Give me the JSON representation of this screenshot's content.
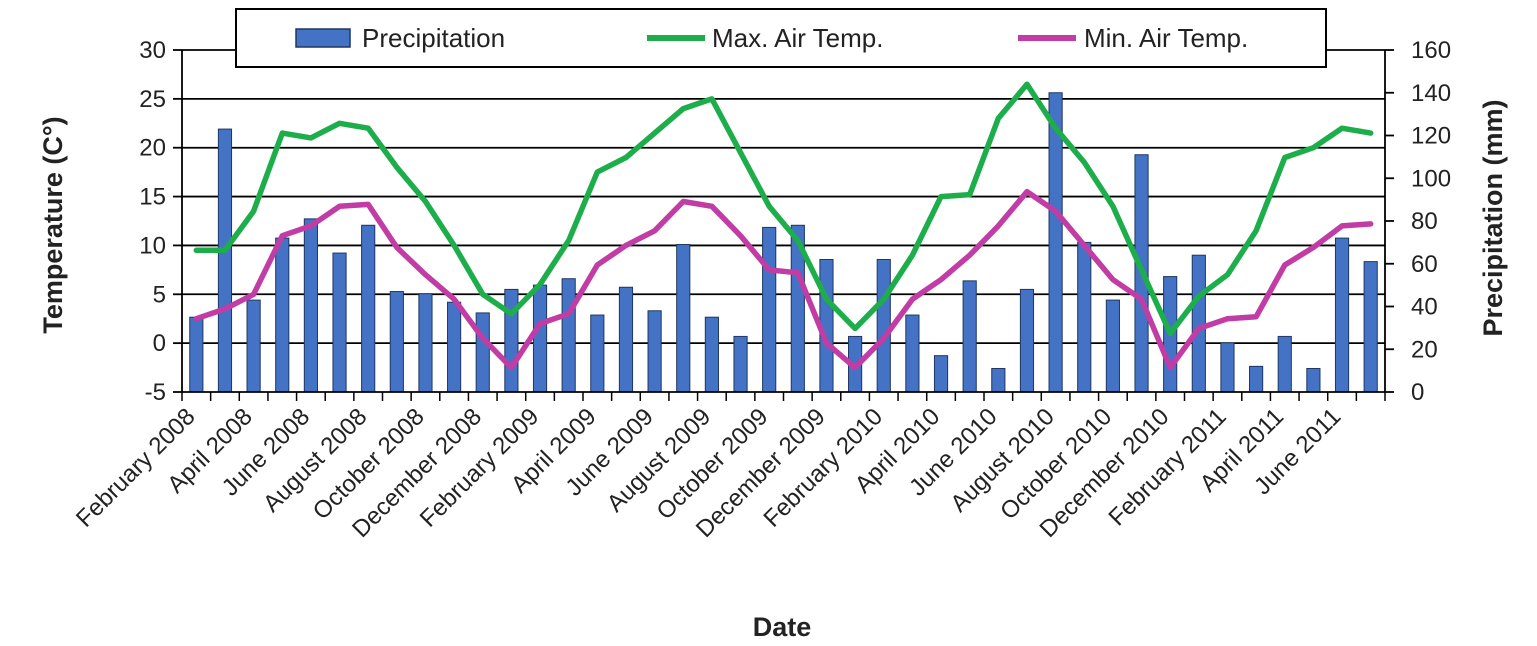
{
  "chart_data": {
    "type": "bar+line",
    "title": "",
    "xlabel": "Date",
    "ylabel_left": "Temperature (C°)",
    "ylabel_right": "Precipitation (mm)",
    "ylim_left": [
      -5,
      30
    ],
    "ylim_right": [
      0,
      160
    ],
    "yticks_left": [
      -5,
      0,
      5,
      10,
      15,
      20,
      25,
      30
    ],
    "yticks_right": [
      0,
      20,
      40,
      60,
      80,
      100,
      120,
      140,
      160
    ],
    "grid": "horizontal",
    "legend_position": "top",
    "x_tick_labels": [
      "February 2008",
      "April 2008",
      "June 2008",
      "August 2008",
      "October 2008",
      "December 2008",
      "February 2009",
      "April 2009",
      "June 2009",
      "August 2009",
      "October 2009",
      "December 2009",
      "February 2010",
      "April 2010",
      "June 2010",
      "August 2010",
      "October 2010",
      "December 2010",
      "February 2011",
      "April 2011",
      "June 2011"
    ],
    "months": [
      "2008-02",
      "2008-03",
      "2008-04",
      "2008-05",
      "2008-06",
      "2008-07",
      "2008-08",
      "2008-09",
      "2008-10",
      "2008-11",
      "2008-12",
      "2009-01",
      "2009-02",
      "2009-03",
      "2009-04",
      "2009-05",
      "2009-06",
      "2009-07",
      "2009-08",
      "2009-09",
      "2009-10",
      "2009-11",
      "2009-12",
      "2010-01",
      "2010-02",
      "2010-03",
      "2010-04",
      "2010-05",
      "2010-06",
      "2010-07",
      "2010-08",
      "2010-09",
      "2010-10",
      "2010-11",
      "2010-12",
      "2011-01",
      "2011-02",
      "2011-03",
      "2011-04",
      "2011-05",
      "2011-06",
      "2011-07"
    ],
    "series": [
      {
        "name": "Precipitation",
        "kind": "bar",
        "axis": "right",
        "color": "#4472C4",
        "values": [
          35,
          123,
          43,
          72,
          81,
          65,
          78,
          47,
          46,
          42,
          37,
          48,
          50,
          53,
          36,
          49,
          38,
          69,
          35,
          26,
          77,
          78,
          62,
          26,
          62,
          36,
          17,
          52,
          11,
          48,
          140,
          70,
          43,
          111,
          54,
          64,
          23,
          12,
          26,
          11,
          72,
          61
        ]
      },
      {
        "name": "Max. Air Temp.",
        "kind": "line",
        "axis": "left",
        "color": "#1DAE4B",
        "values": [
          9.5,
          9.5,
          13.5,
          21.5,
          21.0,
          22.5,
          22.0,
          18.0,
          14.5,
          10.0,
          5.0,
          3.0,
          6.0,
          10.5,
          17.5,
          19.0,
          21.5,
          24.0,
          25.0,
          19.5,
          14.0,
          10.5,
          4.5,
          1.5,
          4.5,
          9.0,
          15.0,
          15.2,
          23.0,
          26.5,
          22.0,
          18.5,
          14.0,
          7.5,
          1.0,
          4.8,
          7.0,
          11.5,
          19.0,
          20.0,
          22.0,
          21.5
        ]
      },
      {
        "name": "Min. Air Temp.",
        "kind": "line",
        "axis": "left",
        "color": "#C23CA5",
        "values": [
          2.5,
          3.5,
          5.0,
          11.0,
          12.0,
          14.0,
          14.2,
          9.8,
          7.0,
          4.5,
          0.5,
          -2.5,
          2.0,
          3.0,
          8.0,
          10.0,
          11.5,
          14.5,
          14.0,
          11.0,
          7.5,
          7.2,
          0.0,
          -2.5,
          0.5,
          4.5,
          6.5,
          9.0,
          12.0,
          15.5,
          13.5,
          10.0,
          6.5,
          4.5,
          -2.5,
          1.5,
          2.5,
          2.7,
          8.0,
          9.8,
          12.0,
          12.2
        ]
      }
    ]
  }
}
